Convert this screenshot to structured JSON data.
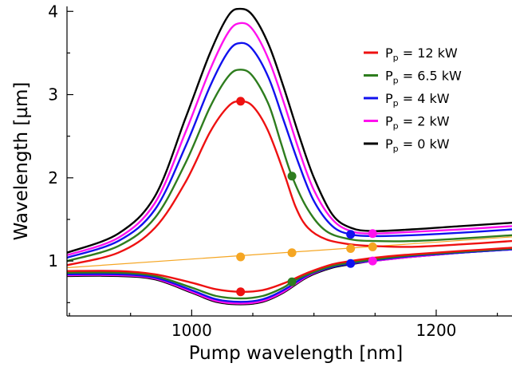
{
  "chart_data": {
    "type": "line",
    "xlabel": "Pump wavelength [nm]",
    "ylabel": "Wavelength [µm]",
    "xlim": [
      898,
      1262
    ],
    "ylim": [
      0.34,
      4.06
    ],
    "xticks": [
      1000,
      1200
    ],
    "yticks": [
      1,
      2,
      3,
      4
    ],
    "grid": false,
    "legend_position": "top-right",
    "series": [
      {
        "name_main": "P",
        "name_sub": "p",
        "name_rest": " = 12 kW",
        "color": "#ee1111",
        "upper": [
          [
            898,
            0.95
          ],
          [
            940,
            1.1
          ],
          [
            970,
            1.4
          ],
          [
            995,
            1.95
          ],
          [
            1015,
            2.55
          ],
          [
            1030,
            2.86
          ],
          [
            1040,
            2.92
          ],
          [
            1050,
            2.86
          ],
          [
            1062,
            2.58
          ],
          [
            1075,
            2.08
          ],
          [
            1085,
            1.65
          ],
          [
            1095,
            1.4
          ],
          [
            1110,
            1.26
          ],
          [
            1130,
            1.2
          ],
          [
            1150,
            1.18
          ],
          [
            1180,
            1.17
          ],
          [
            1220,
            1.2
          ],
          [
            1262,
            1.24
          ]
        ],
        "lower": [
          [
            898,
            0.88
          ],
          [
            940,
            0.88
          ],
          [
            970,
            0.84
          ],
          [
            1000,
            0.74
          ],
          [
            1020,
            0.66
          ],
          [
            1040,
            0.63
          ],
          [
            1058,
            0.65
          ],
          [
            1075,
            0.73
          ],
          [
            1095,
            0.86
          ],
          [
            1115,
            0.96
          ],
          [
            1130,
            1.0
          ],
          [
            1150,
            1.04
          ],
          [
            1180,
            1.08
          ],
          [
            1220,
            1.12
          ],
          [
            1262,
            1.16
          ]
        ],
        "markers": [
          [
            1040,
            2.92
          ],
          [
            1040,
            0.63
          ]
        ]
      },
      {
        "name_main": "P",
        "name_sub": "p",
        "name_rest": " = 6.5 kW",
        "color": "#2e7d1e",
        "upper": [
          [
            898,
            1.0
          ],
          [
            940,
            1.18
          ],
          [
            970,
            1.52
          ],
          [
            995,
            2.18
          ],
          [
            1015,
            2.85
          ],
          [
            1030,
            3.22
          ],
          [
            1040,
            3.3
          ],
          [
            1050,
            3.22
          ],
          [
            1063,
            2.88
          ],
          [
            1073,
            2.42
          ],
          [
            1082,
            2.02
          ],
          [
            1095,
            1.62
          ],
          [
            1110,
            1.36
          ],
          [
            1130,
            1.26
          ],
          [
            1150,
            1.24
          ],
          [
            1180,
            1.24
          ],
          [
            1220,
            1.27
          ],
          [
            1262,
            1.31
          ]
        ],
        "lower": [
          [
            898,
            0.86
          ],
          [
            940,
            0.86
          ],
          [
            970,
            0.82
          ],
          [
            1000,
            0.68
          ],
          [
            1020,
            0.58
          ],
          [
            1040,
            0.55
          ],
          [
            1058,
            0.58
          ],
          [
            1075,
            0.68
          ],
          [
            1082,
            0.75
          ],
          [
            1095,
            0.84
          ],
          [
            1115,
            0.94
          ],
          [
            1130,
            0.98
          ],
          [
            1150,
            1.02
          ],
          [
            1180,
            1.07
          ],
          [
            1220,
            1.11
          ],
          [
            1262,
            1.15
          ]
        ],
        "markers": [
          [
            1082,
            2.02
          ],
          [
            1082,
            0.75
          ]
        ]
      },
      {
        "name_main": "P",
        "name_sub": "p",
        "name_rest": " = 4 kW",
        "color": "#1111ee",
        "upper": [
          [
            898,
            1.04
          ],
          [
            940,
            1.24
          ],
          [
            970,
            1.62
          ],
          [
            995,
            2.38
          ],
          [
            1015,
            3.1
          ],
          [
            1030,
            3.52
          ],
          [
            1040,
            3.62
          ],
          [
            1050,
            3.54
          ],
          [
            1063,
            3.2
          ],
          [
            1075,
            2.7
          ],
          [
            1088,
            2.15
          ],
          [
            1100,
            1.72
          ],
          [
            1115,
            1.42
          ],
          [
            1130,
            1.32
          ],
          [
            1150,
            1.3
          ],
          [
            1180,
            1.31
          ],
          [
            1220,
            1.34
          ],
          [
            1262,
            1.38
          ]
        ],
        "lower": [
          [
            898,
            0.84
          ],
          [
            940,
            0.84
          ],
          [
            970,
            0.8
          ],
          [
            1000,
            0.65
          ],
          [
            1020,
            0.54
          ],
          [
            1040,
            0.51
          ],
          [
            1058,
            0.54
          ],
          [
            1075,
            0.65
          ],
          [
            1095,
            0.83
          ],
          [
            1115,
            0.93
          ],
          [
            1130,
            0.97
          ],
          [
            1150,
            1.01
          ],
          [
            1180,
            1.06
          ],
          [
            1220,
            1.1
          ],
          [
            1262,
            1.14
          ]
        ],
        "markers": [
          [
            1130,
            1.32
          ],
          [
            1130,
            0.97
          ]
        ]
      },
      {
        "name_main": "P",
        "name_sub": "p",
        "name_rest": " = 2 kW",
        "color": "#ff11ee",
        "upper": [
          [
            898,
            1.07
          ],
          [
            940,
            1.28
          ],
          [
            970,
            1.7
          ],
          [
            995,
            2.55
          ],
          [
            1015,
            3.3
          ],
          [
            1030,
            3.75
          ],
          [
            1040,
            3.86
          ],
          [
            1050,
            3.78
          ],
          [
            1063,
            3.42
          ],
          [
            1075,
            2.92
          ],
          [
            1088,
            2.32
          ],
          [
            1100,
            1.85
          ],
          [
            1115,
            1.5
          ],
          [
            1130,
            1.36
          ],
          [
            1148,
            1.33
          ],
          [
            1180,
            1.35
          ],
          [
            1220,
            1.38
          ],
          [
            1262,
            1.42
          ]
        ],
        "lower": [
          [
            898,
            0.83
          ],
          [
            940,
            0.83
          ],
          [
            970,
            0.79
          ],
          [
            1000,
            0.63
          ],
          [
            1020,
            0.52
          ],
          [
            1040,
            0.49
          ],
          [
            1058,
            0.52
          ],
          [
            1075,
            0.63
          ],
          [
            1095,
            0.82
          ],
          [
            1115,
            0.93
          ],
          [
            1130,
            0.97
          ],
          [
            1148,
            1.0
          ],
          [
            1180,
            1.05
          ],
          [
            1220,
            1.1
          ],
          [
            1262,
            1.14
          ]
        ],
        "markers": [
          [
            1148,
            1.33
          ],
          [
            1148,
            1.0
          ]
        ]
      },
      {
        "name_main": "P",
        "name_sub": "p",
        "name_rest": " = 0 kW",
        "color": "#000000",
        "upper": [
          [
            898,
            1.1
          ],
          [
            940,
            1.33
          ],
          [
            970,
            1.78
          ],
          [
            995,
            2.72
          ],
          [
            1015,
            3.5
          ],
          [
            1030,
            3.95
          ],
          [
            1040,
            4.03
          ],
          [
            1050,
            3.95
          ],
          [
            1063,
            3.6
          ],
          [
            1075,
            3.1
          ],
          [
            1088,
            2.5
          ],
          [
            1100,
            2.0
          ],
          [
            1115,
            1.56
          ],
          [
            1130,
            1.4
          ],
          [
            1148,
            1.36
          ],
          [
            1180,
            1.38
          ],
          [
            1220,
            1.42
          ],
          [
            1262,
            1.46
          ]
        ],
        "lower": [
          [
            898,
            0.82
          ],
          [
            940,
            0.82
          ],
          [
            970,
            0.78
          ],
          [
            1000,
            0.62
          ],
          [
            1020,
            0.51
          ],
          [
            1040,
            0.48
          ],
          [
            1058,
            0.51
          ],
          [
            1075,
            0.62
          ],
          [
            1095,
            0.81
          ],
          [
            1115,
            0.92
          ],
          [
            1130,
            0.96
          ],
          [
            1148,
            1.0
          ],
          [
            1180,
            1.05
          ],
          [
            1220,
            1.1
          ],
          [
            1262,
            1.14
          ]
        ],
        "markers": []
      }
    ],
    "pump_line": {
      "color": "#f5a623",
      "points": [
        [
          898,
          0.92
        ],
        [
          1262,
          1.29
        ]
      ],
      "markers": [
        [
          1040,
          1.05
        ],
        [
          1082,
          1.1
        ],
        [
          1130,
          1.15
        ],
        [
          1148,
          1.17
        ]
      ]
    }
  }
}
